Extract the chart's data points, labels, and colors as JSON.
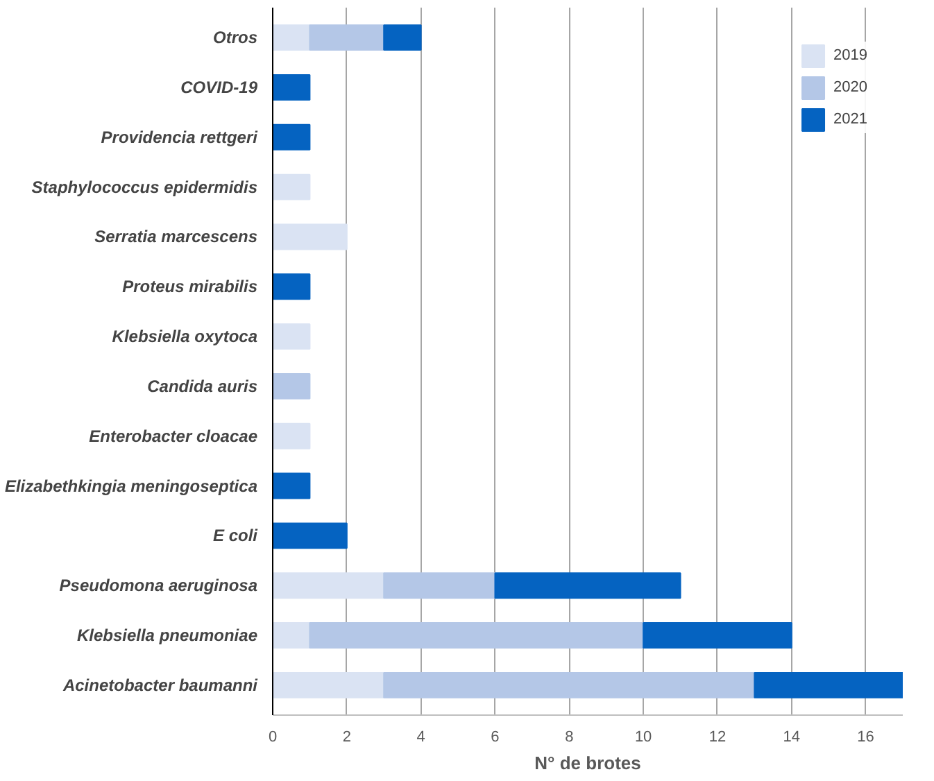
{
  "chart_data": {
    "type": "bar",
    "orientation": "horizontal",
    "stacked": true,
    "xlabel": "N° de brotes",
    "categories": [
      "Otros",
      "COVID-19",
      "Providencia rettgeri",
      "Staphylococcus epidermidis",
      "Serratia marcescens",
      "Proteus mirabilis",
      "Klebsiella oxytoca",
      "Candida auris",
      "Enterobacter cloacae",
      "Elizabethkingia meningoseptica",
      "E coli",
      "Pseudomona aeruginosa",
      "Klebsiella pneumoniae",
      "Acinetobacter baumanni"
    ],
    "series": [
      {
        "name": "2019",
        "color": "#dae3f3",
        "values": [
          1,
          null,
          null,
          1,
          2,
          null,
          1,
          null,
          1,
          null,
          null,
          3,
          1,
          3
        ]
      },
      {
        "name": "2020",
        "color": "#b4c7e7",
        "values": [
          2,
          null,
          null,
          null,
          null,
          null,
          null,
          1,
          null,
          null,
          null,
          3,
          9,
          10
        ]
      },
      {
        "name": "2021",
        "color": "#0563c1",
        "values": [
          1,
          1,
          1,
          null,
          null,
          1,
          null,
          null,
          null,
          1,
          2,
          5,
          4,
          4
        ]
      }
    ],
    "xlim": [
      0,
      17
    ],
    "xticks": [
      0,
      2,
      4,
      6,
      8,
      10,
      12,
      14,
      16
    ],
    "grid": "x",
    "legend": "top right"
  }
}
